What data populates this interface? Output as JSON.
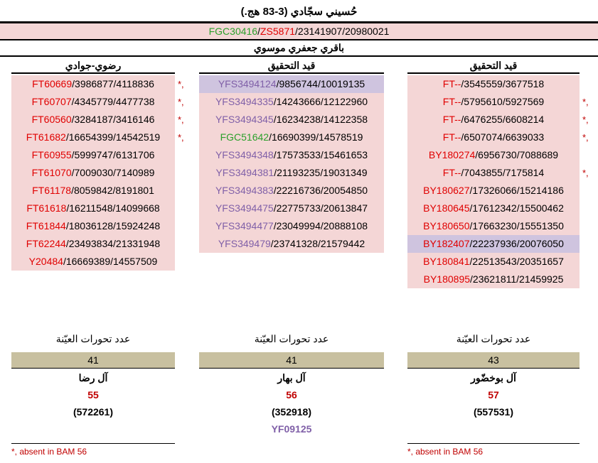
{
  "title": "حُسيني سجّادي (3-83 هج.)",
  "snp_line": {
    "parts": [
      {
        "text": "FGC30416",
        "color": "green"
      },
      {
        "text": "/",
        "color": ""
      },
      {
        "text": "ZS5871",
        "color": "red"
      },
      {
        "text": "/23141907/20980021",
        "color": ""
      }
    ]
  },
  "subtitle": "باقري جعفري موسوي",
  "columns": [
    {
      "header": "رضوي-جوادي",
      "rows": [
        {
          "snp": "FT60669",
          "pos": "/3986877/4118836",
          "color": "red",
          "mark": "*,",
          "hl": false
        },
        {
          "snp": "FT60707",
          "pos": "/4345779/4477738",
          "color": "red",
          "mark": "*,",
          "hl": false
        },
        {
          "snp": "FT60560",
          "pos": "/3284187/3416146",
          "color": "red",
          "mark": "*,",
          "hl": false
        },
        {
          "snp": "FT61682",
          "pos": "/16654399/14542519",
          "color": "red",
          "mark": "*,",
          "hl": false
        },
        {
          "snp": "FT60955",
          "pos": "/5999747/6131706",
          "color": "red",
          "mark": "",
          "hl": false
        },
        {
          "snp": "FT61070",
          "pos": "/7009030/7140989",
          "color": "red",
          "mark": "",
          "hl": false
        },
        {
          "snp": "FT61178",
          "pos": "/8059842/8191801",
          "color": "red",
          "mark": "",
          "hl": false
        },
        {
          "snp": "FT61618",
          "pos": "/16211548/14099668",
          "color": "red",
          "mark": "",
          "hl": false
        },
        {
          "snp": "FT61844",
          "pos": "/18036128/15924248",
          "color": "red",
          "mark": "",
          "hl": false
        },
        {
          "snp": "FT62244",
          "pos": "/23493834/21331948",
          "color": "red",
          "mark": "",
          "hl": false
        },
        {
          "snp": "Y20484",
          "pos": "/16669389/14557509",
          "color": "red",
          "mark": "",
          "hl": false
        }
      ],
      "stat_label": "عدد تحورات العيّنة",
      "stat_value": "41",
      "family": "آل رضا",
      "family_num": "55",
      "family_count": "(572261)",
      "family_extra": "",
      "note": "*, absent in BAM 56"
    },
    {
      "header": "قيد التحقيق",
      "rows": [
        {
          "snp": "YFS3494124",
          "pos": "/9856744/10019135",
          "color": "purple",
          "mark": "",
          "hl": true
        },
        {
          "snp": "YFS3494335",
          "pos": "/14243666/12122960",
          "color": "purple",
          "mark": "",
          "hl": false
        },
        {
          "snp": "YFS3494345",
          "pos": "/16234238/14122358",
          "color": "purple",
          "mark": "",
          "hl": false
        },
        {
          "snp": "FGC51642",
          "pos": "/16690399/14578519",
          "color": "green",
          "mark": "",
          "hl": false
        },
        {
          "snp": "YFS3494348",
          "pos": "/17573533/15461653",
          "color": "purple",
          "mark": "",
          "hl": false
        },
        {
          "snp": "YFS3494381",
          "pos": "/21193235/19031349",
          "color": "purple",
          "mark": "",
          "hl": false
        },
        {
          "snp": "YFS3494383",
          "pos": "/22216736/20054850",
          "color": "purple",
          "mark": "",
          "hl": false
        },
        {
          "snp": "YFS3494475",
          "pos": "/22775733/20613847",
          "color": "purple",
          "mark": "",
          "hl": false
        },
        {
          "snp": "YFS3494477",
          "pos": "/23049994/20888108",
          "color": "purple",
          "mark": "",
          "hl": false
        },
        {
          "snp": "YFS349479",
          "pos": "/23741328/21579442",
          "color": "purple",
          "mark": "",
          "hl": false
        }
      ],
      "stat_label": "عدد تحورات العيّنة",
      "stat_value": "41",
      "family": "آل بهار",
      "family_num": "56",
      "family_count": "(352918)",
      "family_extra": "YF09125",
      "note": ""
    },
    {
      "header": "قيد التحقيق",
      "rows": [
        {
          "snp": "FT--",
          "pos": "/3545559/3677518",
          "color": "red",
          "mark": "",
          "hl": false
        },
        {
          "snp": "FT--",
          "pos": "/5795610/5927569",
          "color": "red",
          "mark": "*,",
          "hl": false
        },
        {
          "snp": "FT--",
          "pos": "/6476255/6608214",
          "color": "red",
          "mark": "*,",
          "hl": false
        },
        {
          "snp": "FT--",
          "pos": "/6507074/6639033",
          "color": "red",
          "mark": "*,",
          "hl": false
        },
        {
          "snp": "BY180274",
          "pos": "/6956730/7088689",
          "color": "red",
          "mark": "",
          "hl": false
        },
        {
          "snp": "FT--",
          "pos": "/7043855/7175814",
          "color": "red",
          "mark": "*,",
          "hl": false
        },
        {
          "snp": "BY180627",
          "pos": "/17326066/15214186",
          "color": "red",
          "mark": "",
          "hl": false
        },
        {
          "snp": "BY180645",
          "pos": "/17612342/15500462",
          "color": "red",
          "mark": "",
          "hl": false
        },
        {
          "snp": "BY180650",
          "pos": "/17663230/15551350",
          "color": "red",
          "mark": "",
          "hl": false
        },
        {
          "snp": "BY182407",
          "pos": "/22237936/20076050",
          "color": "red",
          "mark": "",
          "hl": true
        },
        {
          "snp": "BY180841",
          "pos": "/22513543/20351657",
          "color": "red",
          "mark": "",
          "hl": false
        },
        {
          "snp": "BY180895",
          "pos": "/23621811/21459925",
          "color": "red",
          "mark": "",
          "hl": false
        }
      ],
      "stat_label": "عدد تحورات العيّنة",
      "stat_value": "43",
      "family": "آل بوخضّور",
      "family_num": "57",
      "family_count": "(557531)",
      "family_extra": "",
      "note": "*, absent in BAM 56"
    }
  ]
}
